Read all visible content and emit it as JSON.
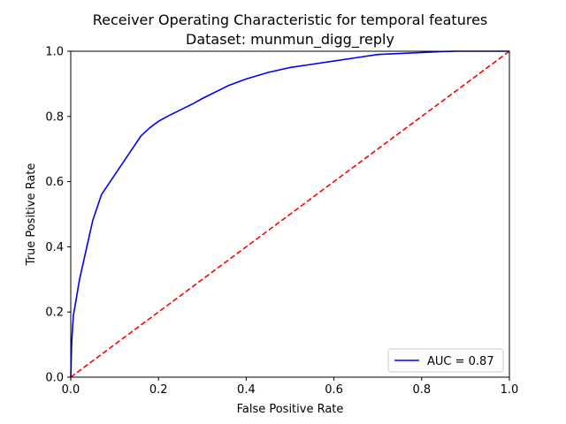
{
  "chart_data": {
    "type": "line",
    "title_line1": "Receiver Operating Characteristic for temporal features",
    "title_line2": "Dataset: munmun_digg_reply",
    "xlabel": "False Positive Rate",
    "ylabel": "True Positive Rate",
    "xlim": [
      0,
      1
    ],
    "ylim": [
      0,
      1
    ],
    "xticks": [
      "0.0",
      "0.2",
      "0.4",
      "0.6",
      "0.8",
      "1.0"
    ],
    "yticks": [
      "0.0",
      "0.2",
      "0.4",
      "0.6",
      "0.8",
      "1.0"
    ],
    "grid": false,
    "legend_position": "lower-right",
    "legend_label": "AUC = 0.87",
    "series": [
      {
        "name": "AUC = 0.87",
        "color": "#0000ff",
        "style": "solid",
        "x": [
          0.0,
          0.002,
          0.004,
          0.006,
          0.01,
          0.015,
          0.02,
          0.03,
          0.04,
          0.05,
          0.06,
          0.07,
          0.08,
          0.09,
          0.1,
          0.12,
          0.14,
          0.16,
          0.18,
          0.2,
          0.22,
          0.25,
          0.28,
          0.3,
          0.33,
          0.36,
          0.4,
          0.45,
          0.5,
          0.55,
          0.6,
          0.65,
          0.7,
          0.75,
          0.8,
          0.85,
          0.88,
          0.9,
          1.0
        ],
        "y": [
          0.0,
          0.1,
          0.15,
          0.19,
          0.22,
          0.26,
          0.3,
          0.36,
          0.42,
          0.48,
          0.52,
          0.56,
          0.58,
          0.6,
          0.62,
          0.66,
          0.7,
          0.74,
          0.765,
          0.785,
          0.8,
          0.82,
          0.84,
          0.855,
          0.875,
          0.895,
          0.915,
          0.935,
          0.95,
          0.96,
          0.97,
          0.98,
          0.99,
          0.993,
          0.996,
          0.999,
          1.0,
          1.0,
          1.0
        ]
      },
      {
        "name": "",
        "color": "#ff0000",
        "style": "dashed",
        "x": [
          0,
          1
        ],
        "y": [
          0,
          1
        ]
      }
    ]
  }
}
